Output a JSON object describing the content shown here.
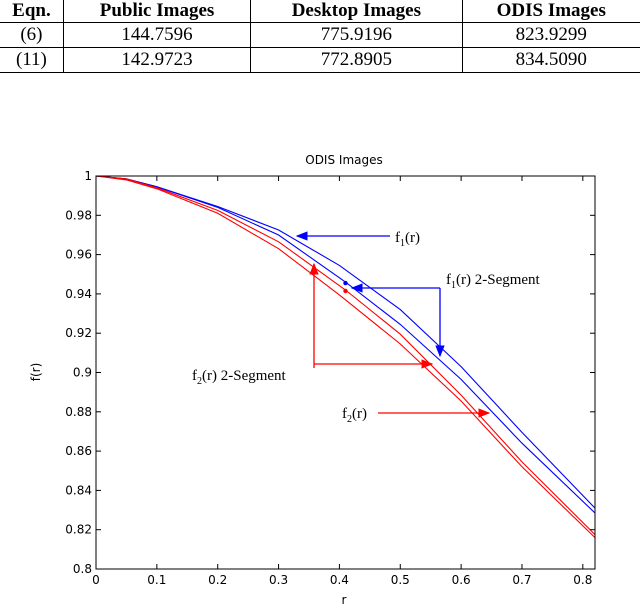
{
  "table": {
    "headers": [
      "Eqn.",
      "Public Images",
      "Desktop Images",
      "ODIS Images"
    ],
    "rows": [
      [
        "(6)",
        "144.7596",
        "775.9196",
        "823.9299"
      ],
      [
        "(11)",
        "142.9723",
        "772.8905",
        "834.5090"
      ]
    ]
  },
  "chart_data": {
    "type": "line",
    "title": "ODIS Images",
    "xlabel": "r",
    "ylabel": "f(r)",
    "xlim": [
      0,
      0.82
    ],
    "ylim": [
      0.8,
      1.0
    ],
    "xticks": [
      "0",
      "0.1",
      "0.2",
      "0.3",
      "0.4",
      "0.5",
      "0.6",
      "0.7",
      "0.8"
    ],
    "yticks": [
      "0.8",
      "0.82",
      "0.84",
      "0.86",
      "0.88",
      "0.9",
      "0.92",
      "0.94",
      "0.96",
      "0.98",
      "1"
    ],
    "grid": false,
    "series": [
      {
        "color": "#0000ff",
        "x": [
          0,
          0.05,
          0.1,
          0.2,
          0.3,
          0.4,
          0.5,
          0.6,
          0.7,
          0.82
        ],
        "y": [
          1.0,
          0.9985,
          0.9945,
          0.9845,
          0.9725,
          0.9545,
          0.932,
          0.903,
          0.8695,
          0.831
        ]
      },
      {
        "color": "#0000ff",
        "x": [
          0,
          0.05,
          0.1,
          0.2,
          0.3,
          0.41,
          0.5,
          0.6,
          0.7,
          0.82
        ],
        "y": [
          1.0,
          0.9985,
          0.9945,
          0.984,
          0.97,
          0.946,
          0.9245,
          0.8965,
          0.864,
          0.8285
        ]
      },
      {
        "color": "#ff0000",
        "x": [
          0,
          0.05,
          0.1,
          0.2,
          0.3,
          0.41,
          0.5,
          0.6,
          0.7,
          0.82
        ],
        "y": [
          1.0,
          0.9985,
          0.994,
          0.9825,
          0.9665,
          0.942,
          0.9195,
          0.8885,
          0.8545,
          0.8175
        ]
      },
      {
        "color": "#ff0000",
        "x": [
          0,
          0.05,
          0.1,
          0.2,
          0.3,
          0.4,
          0.5,
          0.6,
          0.7,
          0.82
        ],
        "y": [
          1.0,
          0.998,
          0.9935,
          0.981,
          0.963,
          0.9395,
          0.9145,
          0.8855,
          0.852,
          0.816
        ]
      }
    ],
    "markers": [
      {
        "color": "#0000ff",
        "x": 0.41,
        "y": 0.9455
      },
      {
        "color": "#ff0000",
        "x": 0.41,
        "y": 0.9415
      }
    ],
    "annotations": [
      {
        "label": "f",
        "sub": "1",
        "suffix": "(r)",
        "color": "#0000ff"
      },
      {
        "label": "f",
        "sub": "1",
        "suffix": "(r) 2-Segment",
        "color": "#0000ff"
      },
      {
        "label": "f",
        "sub": "2",
        "suffix": "(r) 2-Segment",
        "color": "#ff0000"
      },
      {
        "label": "f",
        "sub": "2",
        "suffix": "(r)",
        "color": "#ff0000"
      }
    ]
  }
}
